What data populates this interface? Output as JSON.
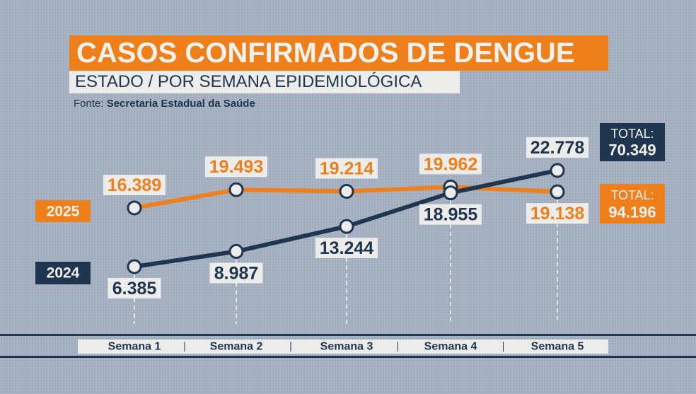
{
  "header": {
    "title": "CASOS CONFIRMADOS DE DENGUE",
    "subtitle": "ESTADO / POR SEMANA EPIDEMIOLÓGICA",
    "source_label": "Fonte:",
    "source_value": "Secretaria Estadual da Saúde"
  },
  "colors": {
    "series_2025": "#ee7f1a",
    "series_2024": "#1f3550",
    "label_bg": "#ececea",
    "background": "#a8b4c3"
  },
  "chart_data": {
    "type": "line",
    "title": "CASOS CONFIRMADOS DE DENGUE",
    "categories": [
      "Semana 1",
      "Semana 2",
      "Semana 3",
      "Semana 4",
      "Semana 5"
    ],
    "series": [
      {
        "name": "2025",
        "values": [
          16389,
          19493,
          19214,
          19962,
          19138
        ],
        "labels": [
          "16.389",
          "19.493",
          "19.214",
          "19.962",
          "19.138"
        ],
        "total_label": "TOTAL:",
        "total": "94.196"
      },
      {
        "name": "2024",
        "values": [
          6385,
          8987,
          13244,
          18955,
          22778
        ],
        "labels": [
          "6.385",
          "8.987",
          "13.244",
          "18.955",
          "22.778"
        ],
        "total_label": "TOTAL:",
        "total": "70.349"
      }
    ],
    "grid": false,
    "legend": "left"
  }
}
